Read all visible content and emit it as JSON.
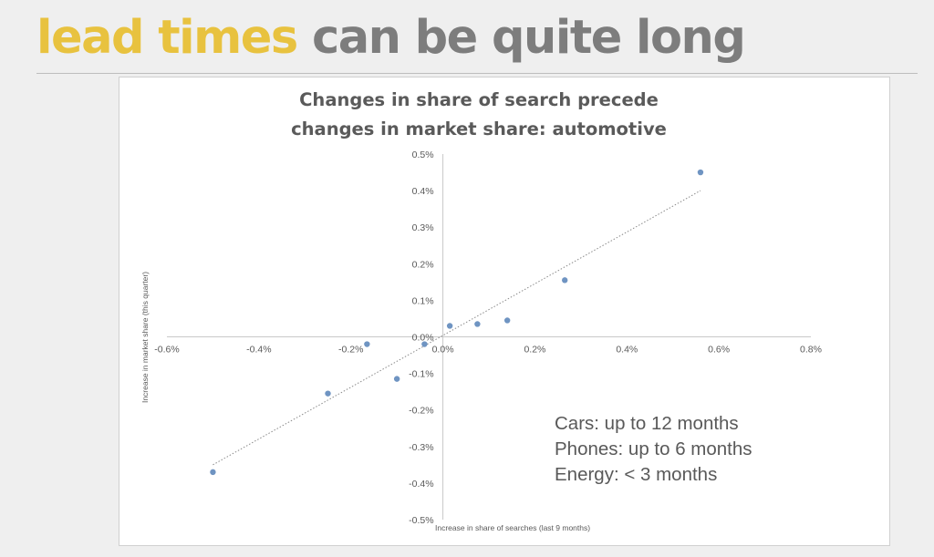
{
  "slide": {
    "title_highlight": "lead times",
    "title_rest": " can be quite long"
  },
  "colors": {
    "highlight": "#e8c23f",
    "title_gray": "#7d7d7d",
    "points": "#6f94c2",
    "trendline": "#8a8a8a"
  },
  "chart_data": {
    "type": "scatter",
    "title_lines": [
      "Changes in share of search precede",
      "changes in market share: automotive"
    ],
    "xlabel": "Increase in share of searches (last 9 months)",
    "ylabel": "Increase in market share (this quarter)",
    "xlim": [
      -0.6,
      0.8
    ],
    "ylim": [
      -0.5,
      0.5
    ],
    "x_ticks": [
      -0.6,
      -0.4,
      -0.2,
      0.0,
      0.2,
      0.4,
      0.6,
      0.8
    ],
    "x_tick_labels": [
      "-0.6%",
      "-0.4%",
      "-0.2%",
      "0.0%",
      "0.2%",
      "0.4%",
      "0.6%",
      "0.8%"
    ],
    "y_ticks": [
      0.5,
      0.4,
      0.3,
      0.2,
      0.1,
      0.0,
      -0.1,
      -0.2,
      -0.3,
      -0.4,
      -0.5
    ],
    "y_tick_labels": [
      "0.5%",
      "0.4%",
      "0.3%",
      "0.2%",
      "0.1%",
      "0.0%",
      "-0.1%",
      "-0.2%",
      "-0.3%",
      "-0.4%",
      "-0.5%"
    ],
    "grid": false,
    "series": [
      {
        "x": [
          -0.5,
          -0.25,
          -0.165,
          -0.1,
          -0.04,
          0.015,
          0.075,
          0.14,
          0.265,
          0.56
        ],
        "y": [
          -0.37,
          -0.155,
          -0.02,
          -0.115,
          -0.02,
          0.03,
          0.035,
          0.045,
          0.155,
          0.45
        ]
      }
    ],
    "trendline": {
      "type": "linear",
      "x_start": -0.5,
      "y_start": -0.35,
      "x_end": 0.56,
      "y_end": 0.4
    }
  },
  "annotation": {
    "lines": [
      "Cars: up to 12 months",
      "Phones: up to 6 months",
      "Energy: < 3 months"
    ]
  }
}
